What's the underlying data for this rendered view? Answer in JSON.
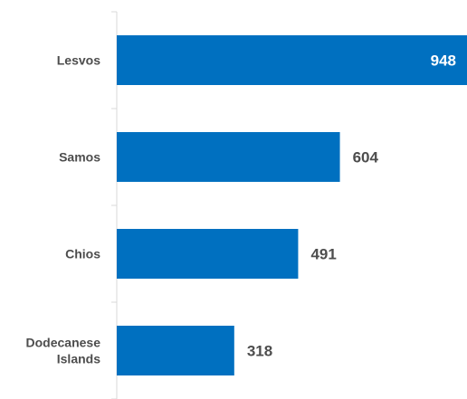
{
  "chart_data": {
    "type": "bar",
    "orientation": "horizontal",
    "categories": [
      "Lesvos",
      "Samos",
      "Chios",
      "Dodecanese Islands"
    ],
    "category_lines": [
      [
        "Lesvos"
      ],
      [
        "Samos"
      ],
      [
        "Chios"
      ],
      [
        "Dodecanese",
        "Islands"
      ]
    ],
    "values": [
      948,
      604,
      491,
      318
    ],
    "value_labels": [
      "948",
      "604",
      "491",
      "318"
    ],
    "xlim": [
      0,
      948
    ],
    "grid": false,
    "legend": "none",
    "colors": {
      "bar": "#0070c0",
      "axis": "#d9d9d9",
      "category_text": "#4d4d4d",
      "value_text_inside": "#ffffff",
      "value_text_outside": "#4d4d4d"
    }
  }
}
